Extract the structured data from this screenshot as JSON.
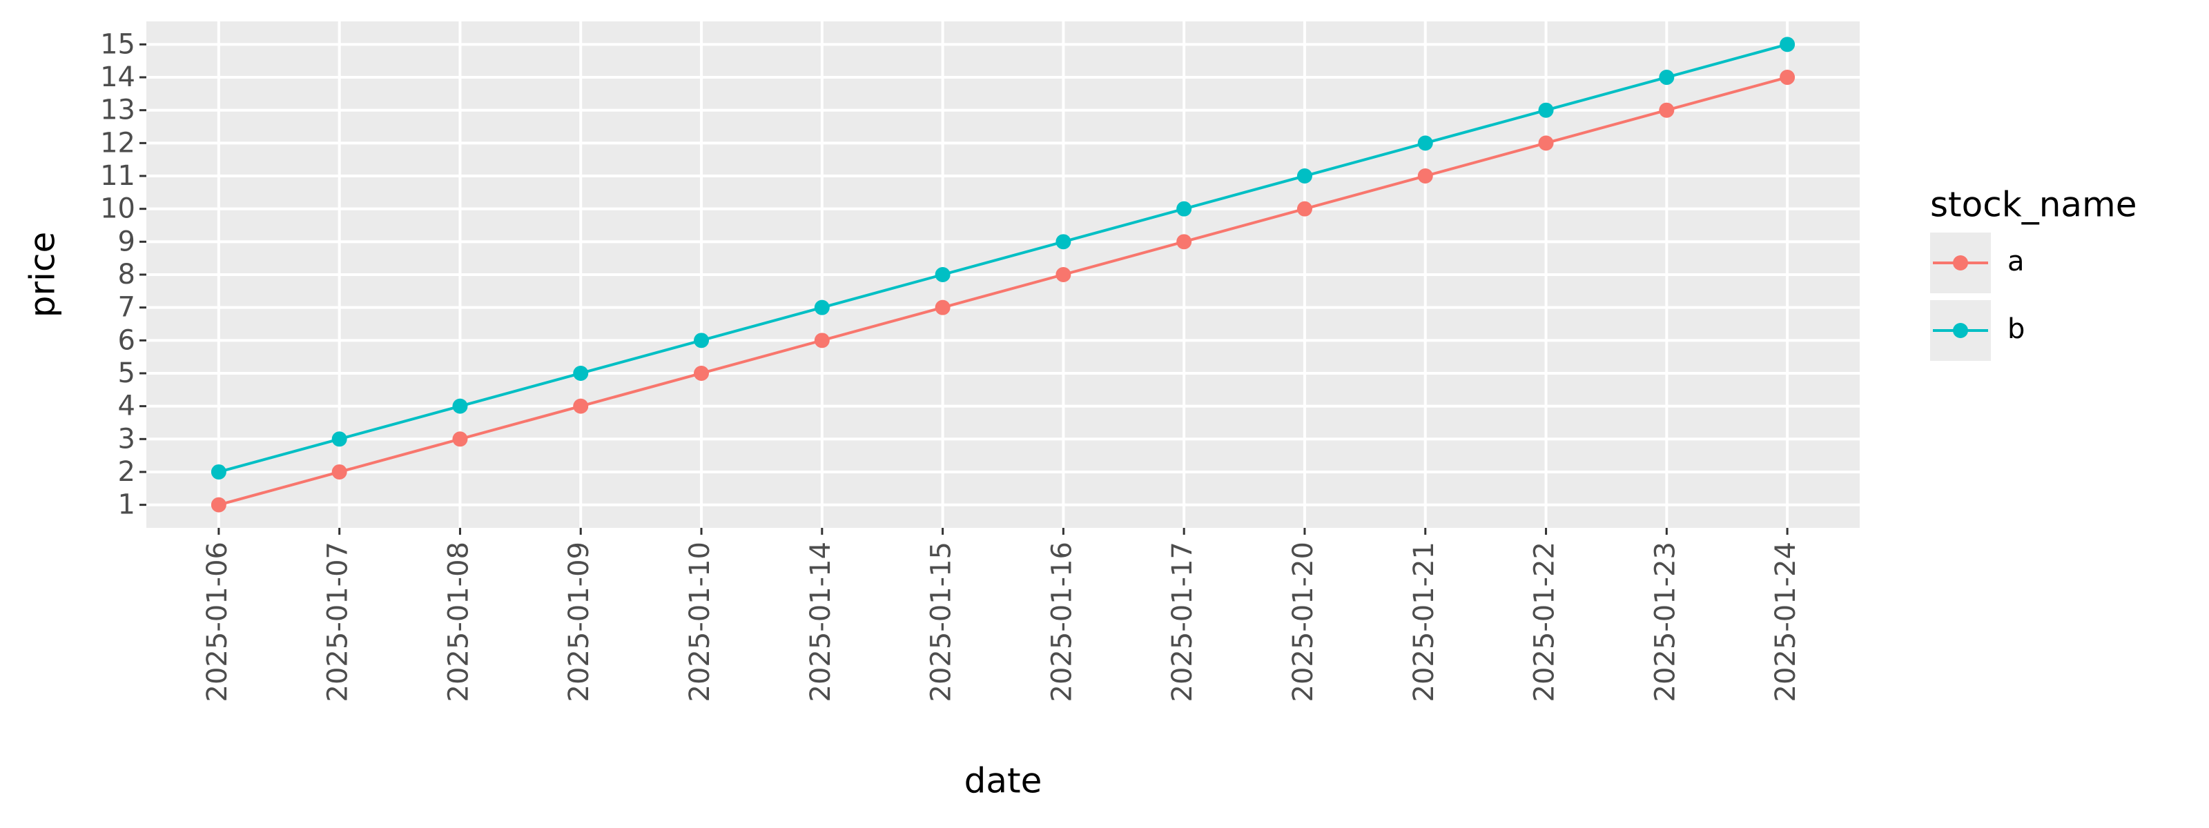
{
  "chart_data": {
    "type": "line",
    "x_label": "date",
    "y_label": "price",
    "categories": [
      "2025-01-06",
      "2025-01-07",
      "2025-01-08",
      "2025-01-09",
      "2025-01-10",
      "2025-01-14",
      "2025-01-15",
      "2025-01-16",
      "2025-01-17",
      "2025-01-20",
      "2025-01-21",
      "2025-01-22",
      "2025-01-23",
      "2025-01-24"
    ],
    "series": [
      {
        "name": "a",
        "color": "#f8766d",
        "values": [
          1,
          2,
          3,
          4,
          5,
          6,
          7,
          8,
          9,
          10,
          11,
          12,
          13,
          14
        ]
      },
      {
        "name": "b",
        "color": "#00bfc4",
        "values": [
          2,
          3,
          4,
          5,
          6,
          7,
          8,
          9,
          10,
          11,
          12,
          13,
          14,
          15
        ]
      }
    ],
    "legend_title": "stock_name",
    "legend_position": "right",
    "ylim": [
      0.3,
      15.7
    ],
    "yticks": [
      1,
      2,
      3,
      4,
      5,
      6,
      7,
      8,
      9,
      10,
      11,
      12,
      13,
      14,
      15
    ],
    "grid": true
  }
}
